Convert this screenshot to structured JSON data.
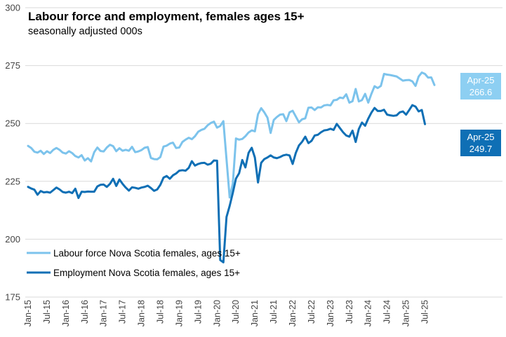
{
  "chart_data": {
    "type": "line",
    "title": "Labour force and employment, females ages 15+",
    "subtitle": "seasonally adjusted 000s",
    "xlabel": "",
    "ylabel": "",
    "ylim": [
      175,
      300
    ],
    "y_ticks": [
      "175",
      "200",
      "225",
      "250",
      "275",
      "300"
    ],
    "x_tick_labels": [
      "Jan-15",
      "Jul-15",
      "Jan-16",
      "Jul-16",
      "Jan-17",
      "Jul-17",
      "Jan-18",
      "Jul-18",
      "Jan-19",
      "Jul-19",
      "Jan-20",
      "Jul-20",
      "Jan-21",
      "Jul-21",
      "Jan-22",
      "Jul-22",
      "Jan-23",
      "Jul-23",
      "Jan-24",
      "Jul-24",
      "Jan-25",
      "Jul-25"
    ],
    "x_start": "Jan-15",
    "x_end": "Jul-25",
    "grid": true,
    "legend_position": "bottom-left",
    "series": [
      {
        "name": "Labour force Nova Scotia females, ages 15+",
        "color": "#7cc3ec",
        "callout": {
          "period": "Apr-25",
          "value": "266.6"
        },
        "values": [
          240.3,
          239.4,
          237.8,
          237.4,
          238.2,
          236.8,
          238.0,
          237.2,
          238.6,
          239.4,
          238.6,
          237.4,
          237.0,
          238.0,
          237.2,
          235.9,
          235.3,
          236.3,
          234.0,
          235.0,
          233.6,
          237.6,
          239.6,
          238.1,
          237.9,
          239.6,
          240.8,
          240.2,
          238.0,
          239.3,
          238.2,
          238.6,
          238.2,
          239.9,
          237.6,
          237.9,
          238.5,
          239.5,
          239.8,
          235.1,
          234.6,
          234.5,
          235.5,
          240.0,
          240.4,
          241.3,
          241.7,
          239.4,
          239.6,
          242.0,
          243.0,
          243.8,
          243.2,
          244.5,
          246.4,
          247.2,
          247.7,
          249.2,
          250.2,
          250.8,
          248.2,
          248.9,
          251.0,
          234.5,
          218.0,
          224.0,
          243.5,
          243.0,
          243.3,
          244.5,
          246.1,
          247.0,
          246.6,
          254.0,
          256.6,
          254.8,
          252.5,
          245.9,
          251.5,
          252.8,
          253.8,
          254.0,
          251.0,
          254.8,
          255.5,
          253.0,
          250.5,
          251.8,
          252.2,
          256.8,
          256.9,
          255.8,
          257.0,
          256.9,
          257.8,
          258.0,
          257.8,
          260.0,
          260.2,
          261.2,
          260.9,
          262.6,
          259.0,
          259.6,
          264.9,
          259.5,
          260.1,
          262.8,
          259.0,
          262.8,
          266.1,
          265.3,
          266.2,
          271.4,
          271.1,
          270.9,
          270.6,
          270.3,
          269.4,
          268.5,
          268.7,
          268.8,
          268.2,
          266.2,
          270.3,
          272.0,
          271.4,
          269.8,
          269.9,
          266.6
        ]
      },
      {
        "name": "Employment Nova Scotia females, ages 15+",
        "color": "#0f6fb5",
        "callout": {
          "period": "Apr-25",
          "value": "249.7"
        },
        "values": [
          222.6,
          221.9,
          221.4,
          219.2,
          220.8,
          220.2,
          220.4,
          220.1,
          221.2,
          222.3,
          221.5,
          220.4,
          220.1,
          220.5,
          219.9,
          221.8,
          217.8,
          220.5,
          220.4,
          220.6,
          220.5,
          220.5,
          222.8,
          223.5,
          223.6,
          222.6,
          223.9,
          226.1,
          223.0,
          225.8,
          223.9,
          222.3,
          221.0,
          222.4,
          222.2,
          221.8,
          222.3,
          222.6,
          223.1,
          222.1,
          220.9,
          221.5,
          223.5,
          226.6,
          227.3,
          226.1,
          227.6,
          228.4,
          229.6,
          229.8,
          229.6,
          230.8,
          233.7,
          231.8,
          232.5,
          232.9,
          233.0,
          232.2,
          232.6,
          234.0,
          233.9,
          191.0,
          190.0,
          209.6,
          214.4,
          220.0,
          226.2,
          228.5,
          234.2,
          231.0,
          237.3,
          239.5,
          235.3,
          224.5,
          233.0,
          234.6,
          235.3,
          236.2,
          235.3,
          235.0,
          235.5,
          236.2,
          236.5,
          236.2,
          232.5,
          237.3,
          240.5,
          242.1,
          244.3,
          241.5,
          242.5,
          244.8,
          245.1,
          246.2,
          247.0,
          247.2,
          247.7,
          247.2,
          249.8,
          248.0,
          246.2,
          244.8,
          244.3,
          246.9,
          242.0,
          247.6,
          250.4,
          249.0,
          252.1,
          254.7,
          256.7,
          255.4,
          255.4,
          255.9,
          253.8,
          253.5,
          253.3,
          253.5,
          254.8,
          255.2,
          253.8,
          255.8,
          257.9,
          257.3,
          255.2,
          255.8,
          249.7
        ]
      }
    ]
  }
}
